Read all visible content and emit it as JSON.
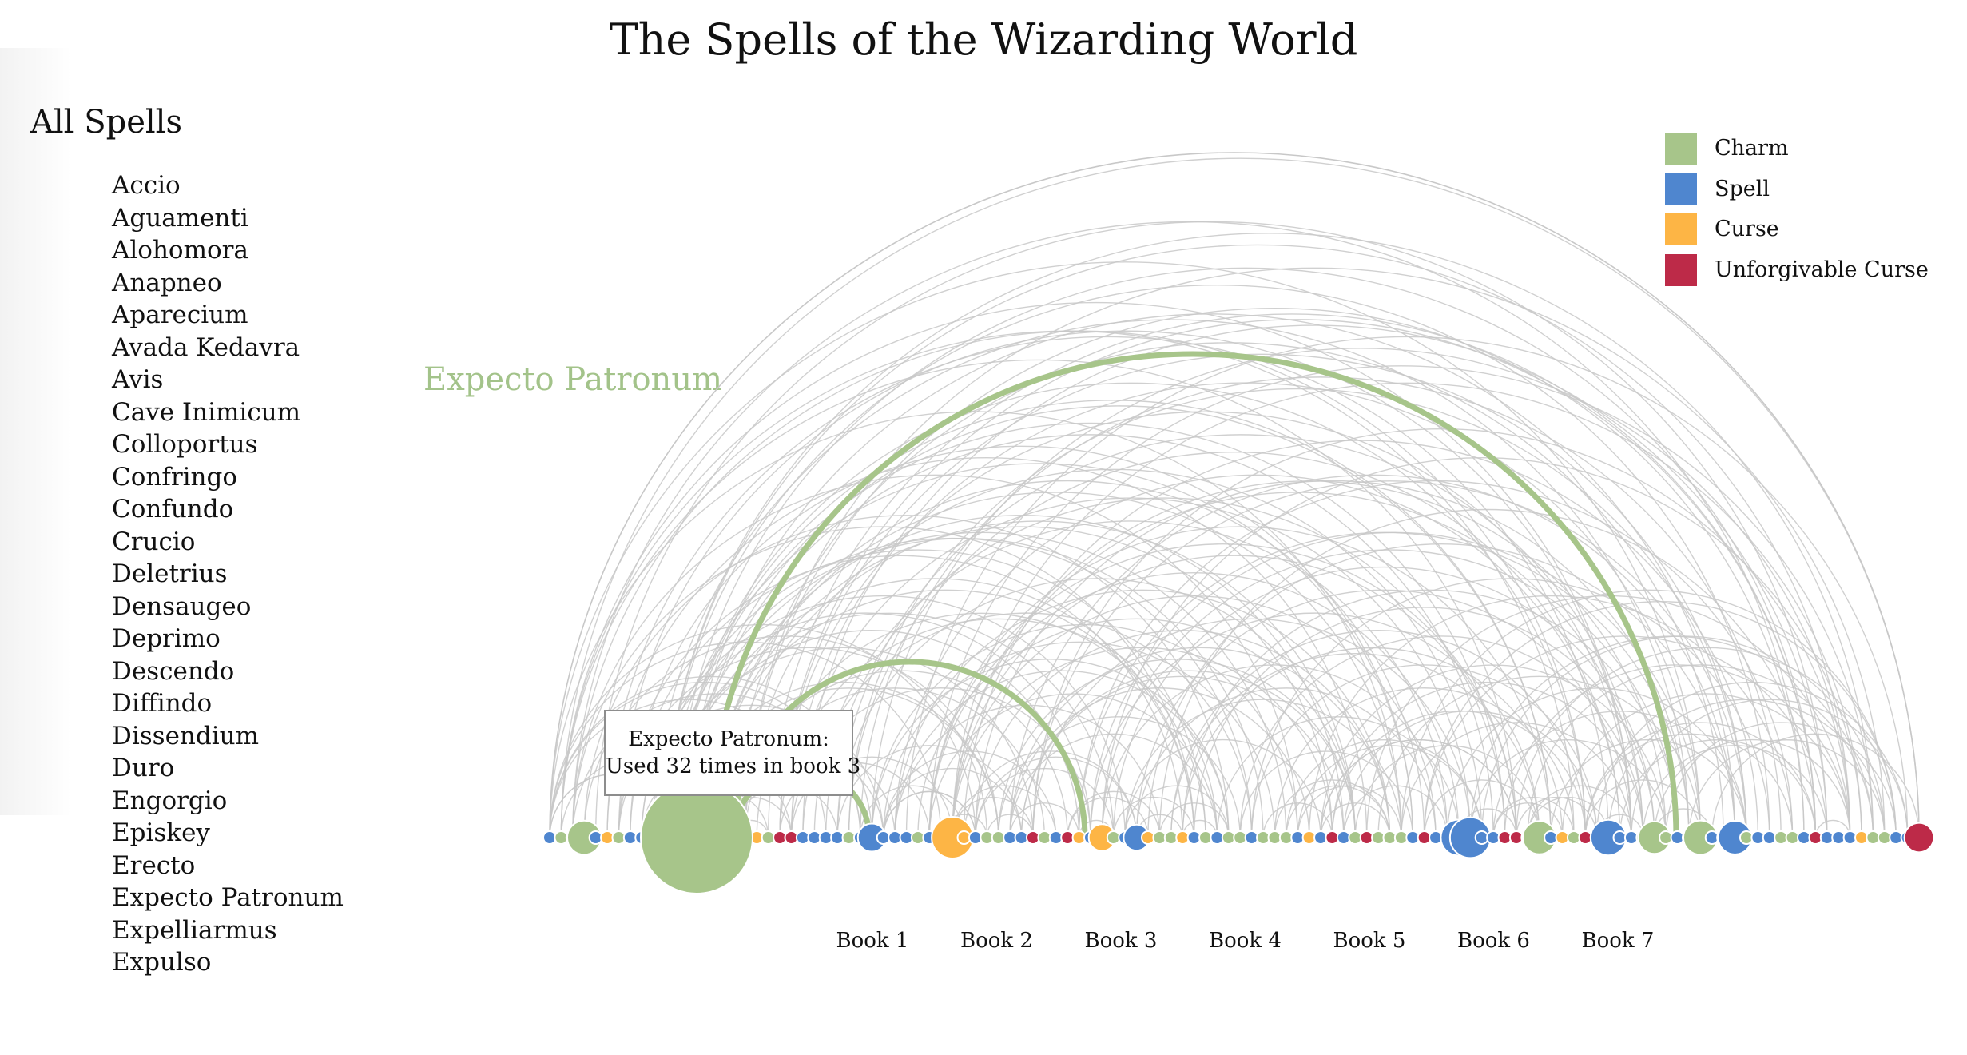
{
  "title": "The Spells of the Wizarding World",
  "sidebar": {
    "title": "All Spells",
    "spells": [
      "Accio",
      "Aguamenti",
      "Alohomora",
      "Anapneo",
      "Aparecium",
      "Avada Kedavra",
      "Avis",
      "Cave Inimicum",
      "Colloportus",
      "Confringo",
      "Confundo",
      "Crucio",
      "Deletrius",
      "Densaugeo",
      "Deprimo",
      "Descendo",
      "Diffindo",
      "Dissendium",
      "Duro",
      "Engorgio",
      "Episkey",
      "Erecto",
      "Expecto Patronum",
      "Expelliarmus",
      "Expulso"
    ]
  },
  "hover_label": "Expecto Patronum",
  "tooltip": {
    "line1": "Expecto Patronum:",
    "line2": "Used 32 times in book 3"
  },
  "legend": [
    {
      "label": "Charm",
      "color": "#a7c58a"
    },
    {
      "label": "Spell",
      "color": "#4f86cf"
    },
    {
      "label": "Curse",
      "color": "#fdb545"
    },
    {
      "label": "Unforgivable Curse",
      "color": "#bd2a48"
    }
  ],
  "chart_data": {
    "type": "arc-diagram",
    "books": [
      "Book 1",
      "Book 2",
      "Book 3",
      "Book 4",
      "Book 5",
      "Book 6",
      "Book 7"
    ],
    "categories": [
      "Charm",
      "Spell",
      "Curse",
      "Unforgivable Curse"
    ],
    "highlighted": {
      "spell": "Expecto Patronum",
      "category": "Charm",
      "book": "Book 3",
      "count": 32
    },
    "colors": {
      "Charm": "#a7c58a",
      "Spell": "#4f86cf",
      "Curse": "#fdb545",
      "Unforgivable Curse": "#bd2a48",
      "link": "#c8c8c8"
    }
  }
}
